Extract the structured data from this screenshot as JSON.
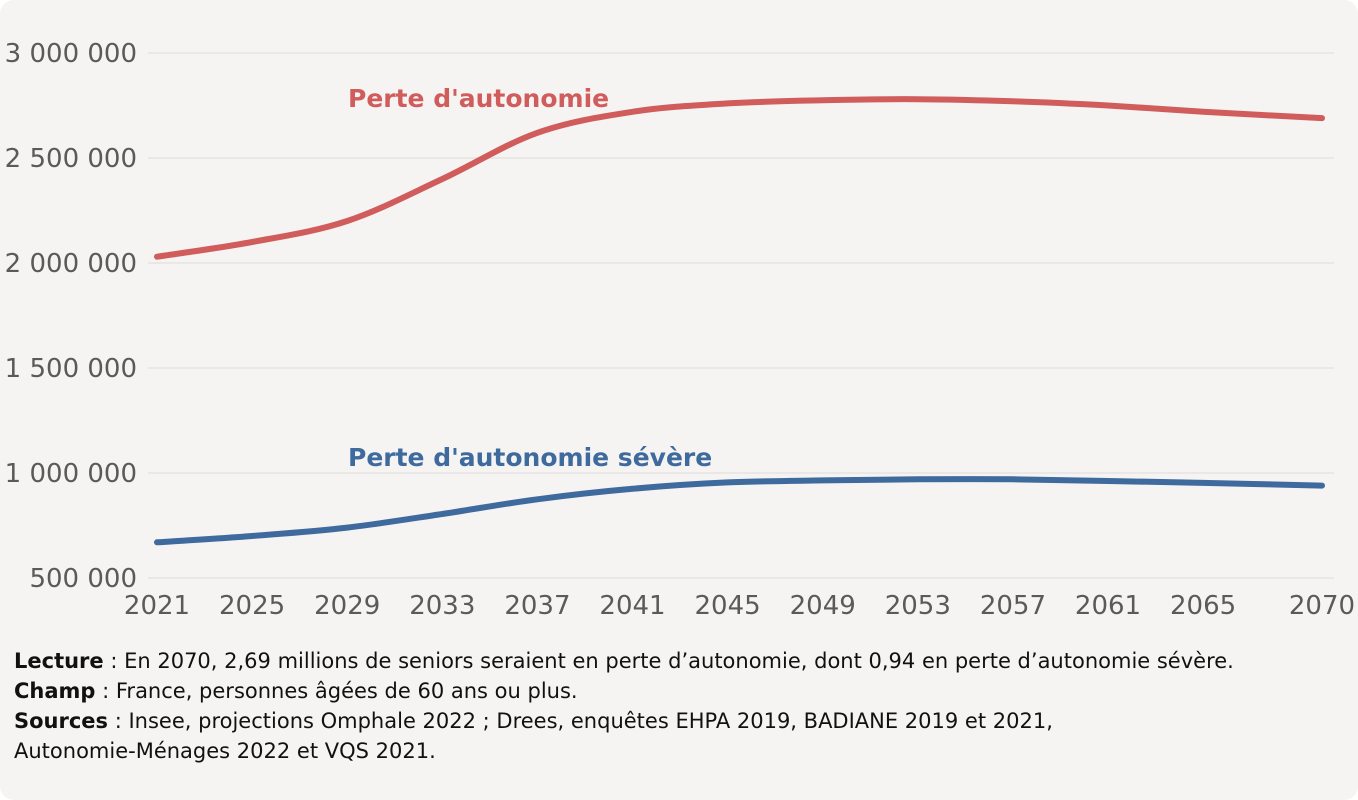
{
  "panel": {
    "background": "#f5f4f2",
    "grid_color": "#e6e4e2",
    "tick_color": "#5a5a5a"
  },
  "chart_data": {
    "type": "line",
    "title": "",
    "xlabel": "",
    "ylabel": "",
    "grid": "horizontal",
    "legend": "inline-labels",
    "xlim": [
      2021,
      2070
    ],
    "ylim": [
      500000,
      3000000
    ],
    "x": [
      2021,
      2025,
      2029,
      2033,
      2037,
      2041,
      2045,
      2049,
      2053,
      2057,
      2061,
      2065,
      2070
    ],
    "x_tick_labels": [
      "2021",
      "2025",
      "2029",
      "2033",
      "2037",
      "2041",
      "2045",
      "2049",
      "2053",
      "2057",
      "2061",
      "2065",
      "2070"
    ],
    "y_ticks": [
      500000,
      1000000,
      1500000,
      2000000,
      2500000,
      3000000
    ],
    "y_tick_labels": [
      "500 000",
      "1 000 000",
      "1 500 000",
      "2 000 000",
      "2 500 000",
      "3 000 000"
    ],
    "series": [
      {
        "name": "Perte d'autonomie",
        "color": "#d05c5c",
        "values": [
          2030000,
          2100000,
          2200000,
          2400000,
          2620000,
          2720000,
          2760000,
          2775000,
          2780000,
          2770000,
          2750000,
          2720000,
          2690000
        ]
      },
      {
        "name": "Perte d'autonomie sévère",
        "color": "#3e6a9e",
        "values": [
          670000,
          700000,
          740000,
          805000,
          875000,
          925000,
          955000,
          965000,
          970000,
          970000,
          962000,
          953000,
          940000
        ]
      }
    ]
  },
  "notes": [
    {
      "label": "Lecture",
      "text": " : En 2070, 2,69 millions de seniors seraient en perte d’autonomie, dont 0,94 en perte d’autonomie sévère."
    },
    {
      "label": "Champ",
      "text": " : France, personnes âgées de 60 ans ou plus."
    },
    {
      "label": "Sources",
      "text": " : Insee, projections Omphale 2022 ; Drees, enquêtes EHPA 2019, BADIANE 2019 et 2021, Autonomie-Ménages 2022 et VQS 2021."
    }
  ]
}
